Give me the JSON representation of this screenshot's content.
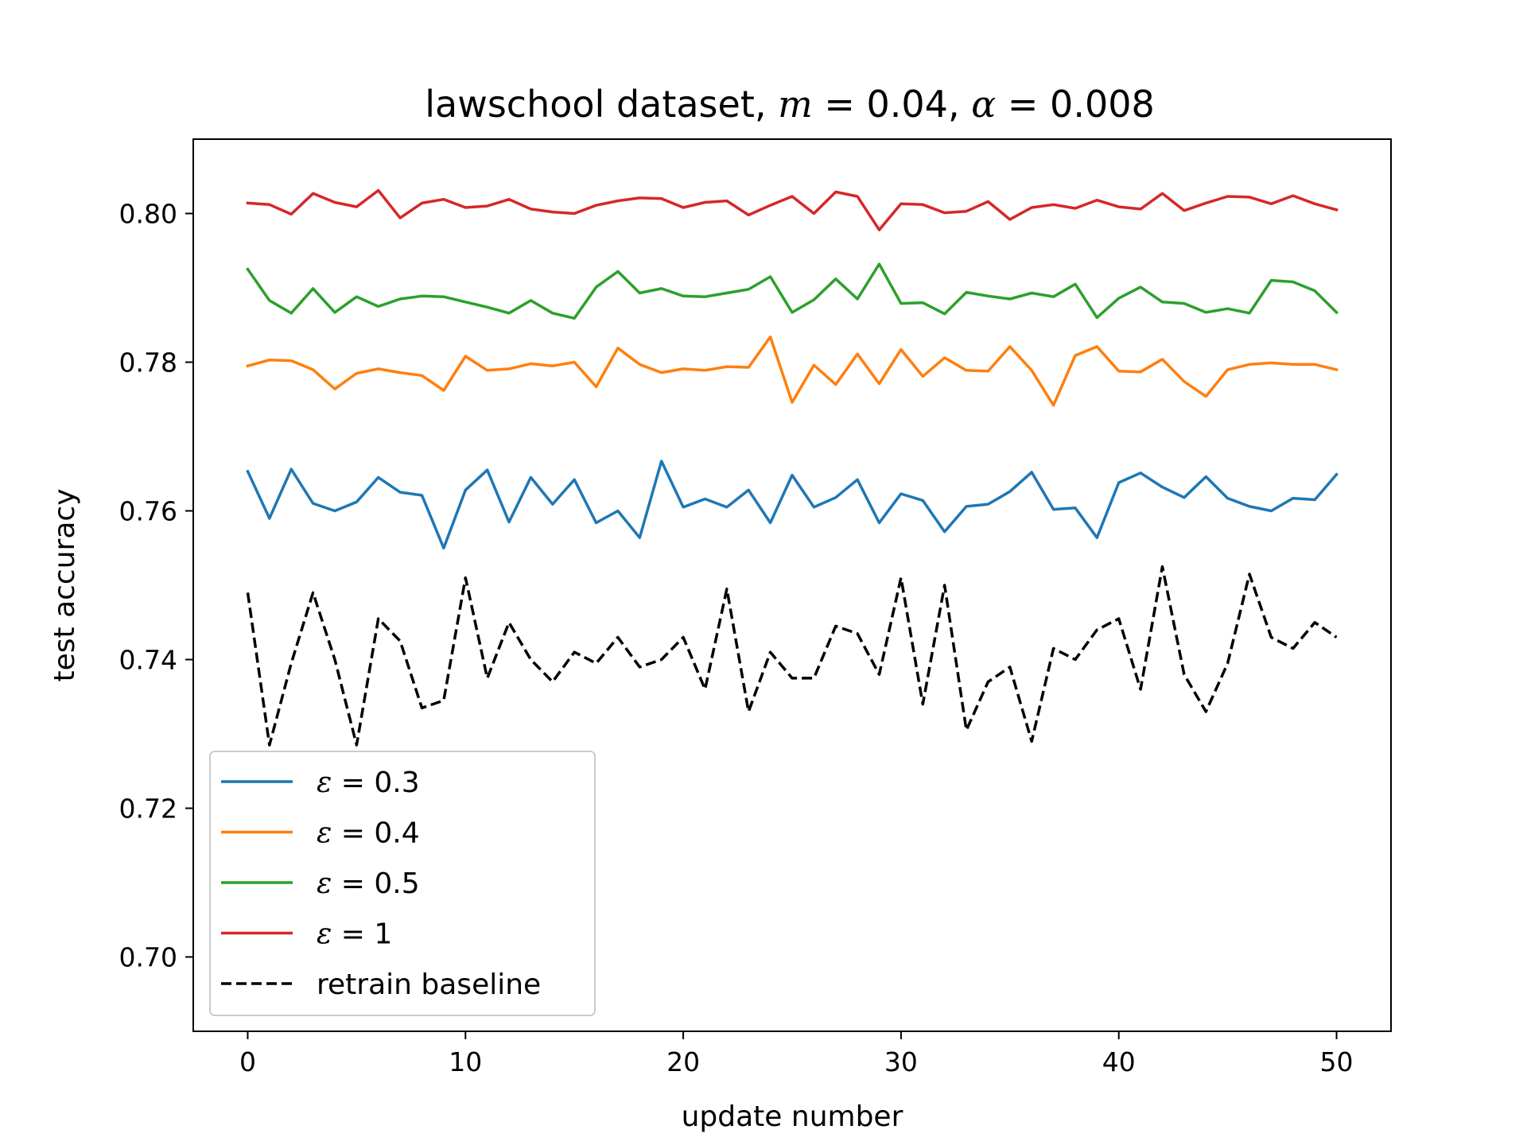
{
  "chart_data": {
    "type": "line",
    "title": {
      "prefix": "lawschool dataset, ",
      "m_symbol": "m",
      "m_rest": " = 0.04, ",
      "alpha_symbol": "α",
      "alpha_rest": " = 0.008"
    },
    "xlabel": "update number",
    "ylabel": "test accuracy",
    "xlim": [
      -2.5,
      52.5
    ],
    "ylim": [
      0.69,
      0.81
    ],
    "xticks": [
      0,
      10,
      20,
      30,
      40,
      50
    ],
    "xtick_labels": [
      "0",
      "10",
      "20",
      "30",
      "40",
      "50"
    ],
    "yticks": [
      0.7,
      0.72,
      0.74,
      0.76,
      0.78,
      0.8
    ],
    "ytick_labels": [
      "0.70",
      "0.72",
      "0.74",
      "0.76",
      "0.78",
      "0.80"
    ],
    "grid": false,
    "legend_position": "lower-left",
    "x": [
      0,
      1,
      2,
      3,
      4,
      5,
      6,
      7,
      8,
      9,
      10,
      11,
      12,
      13,
      14,
      15,
      16,
      17,
      18,
      19,
      20,
      21,
      22,
      23,
      24,
      25,
      26,
      27,
      28,
      29,
      30,
      31,
      32,
      33,
      34,
      35,
      36,
      37,
      38,
      39,
      40,
      41,
      42,
      43,
      44,
      45,
      46,
      47,
      48,
      49,
      50
    ],
    "series": [
      {
        "symbol": "ε",
        "label_rest": " = 0.3",
        "color": "#1f77b4",
        "dash": "solid",
        "values": [
          0.7653,
          0.759,
          0.7656,
          0.761,
          0.76,
          0.7612,
          0.7645,
          0.7625,
          0.7621,
          0.755,
          0.7628,
          0.7655,
          0.7585,
          0.7645,
          0.7609,
          0.7642,
          0.7584,
          0.76,
          0.7564,
          0.7667,
          0.7605,
          0.7616,
          0.7605,
          0.7628,
          0.7584,
          0.7648,
          0.7605,
          0.7618,
          0.7642,
          0.7584,
          0.7623,
          0.7614,
          0.7572,
          0.7606,
          0.7609,
          0.7626,
          0.7652,
          0.7602,
          0.7604,
          0.7564,
          0.7638,
          0.7651,
          0.7632,
          0.7618,
          0.7646,
          0.7617,
          0.7606,
          0.76,
          0.7617,
          0.7615,
          0.7649
        ]
      },
      {
        "symbol": "ε",
        "label_rest": " = 0.4",
        "color": "#ff7f0e",
        "dash": "solid",
        "values": [
          0.7795,
          0.7803,
          0.7802,
          0.779,
          0.7764,
          0.7785,
          0.7791,
          0.7786,
          0.7782,
          0.7762,
          0.7808,
          0.7789,
          0.7791,
          0.7798,
          0.7795,
          0.78,
          0.7767,
          0.7819,
          0.7797,
          0.7786,
          0.7791,
          0.7789,
          0.7794,
          0.7793,
          0.7834,
          0.7746,
          0.7796,
          0.777,
          0.7811,
          0.7771,
          0.7817,
          0.7781,
          0.7806,
          0.7789,
          0.7788,
          0.7821,
          0.7789,
          0.7742,
          0.7809,
          0.7821,
          0.7788,
          0.7787,
          0.7804,
          0.7774,
          0.7754,
          0.779,
          0.7797,
          0.7799,
          0.7797,
          0.7797,
          0.779
        ]
      },
      {
        "symbol": "ε",
        "label_rest": " = 0.5",
        "color": "#2ca02c",
        "dash": "solid",
        "values": [
          0.7925,
          0.7883,
          0.7866,
          0.7899,
          0.7867,
          0.7888,
          0.7875,
          0.7885,
          0.7889,
          0.7888,
          0.7881,
          0.7874,
          0.7866,
          0.7883,
          0.7866,
          0.7859,
          0.7901,
          0.7922,
          0.7893,
          0.7899,
          0.7889,
          0.7888,
          0.7893,
          0.7898,
          0.7915,
          0.7867,
          0.7884,
          0.7912,
          0.7885,
          0.7932,
          0.7879,
          0.788,
          0.7865,
          0.7894,
          0.7889,
          0.7885,
          0.7893,
          0.7888,
          0.7905,
          0.786,
          0.7886,
          0.7901,
          0.7881,
          0.7879,
          0.7867,
          0.7872,
          0.7866,
          0.791,
          0.7908,
          0.7896,
          0.7867
        ]
      },
      {
        "symbol": "ε",
        "label_rest": " = 1",
        "color": "#d62728",
        "dash": "solid",
        "values": [
          0.8014,
          0.8012,
          0.7999,
          0.8027,
          0.8015,
          0.8009,
          0.8031,
          0.7994,
          0.8014,
          0.8019,
          0.8008,
          0.801,
          0.8019,
          0.8006,
          0.8002,
          0.8,
          0.8011,
          0.8017,
          0.8021,
          0.802,
          0.8008,
          0.8015,
          0.8017,
          0.7998,
          0.8011,
          0.8023,
          0.8,
          0.8029,
          0.8023,
          0.7978,
          0.8013,
          0.8012,
          0.8001,
          0.8003,
          0.8016,
          0.7992,
          0.8008,
          0.8012,
          0.8007,
          0.8018,
          0.8009,
          0.8006,
          0.8027,
          0.8004,
          0.8014,
          0.8023,
          0.8022,
          0.8013,
          0.8024,
          0.8013,
          0.8005
        ]
      },
      {
        "symbol": "",
        "label_rest": "retrain baseline",
        "color": "#000000",
        "dash": "dashed",
        "values": [
          0.749,
          0.7285,
          0.7395,
          0.749,
          0.74,
          0.7285,
          0.7455,
          0.7425,
          0.7335,
          0.7345,
          0.751,
          0.7375,
          0.745,
          0.74,
          0.737,
          0.741,
          0.7395,
          0.743,
          0.739,
          0.74,
          0.743,
          0.736,
          0.7495,
          0.733,
          0.741,
          0.7375,
          0.7375,
          0.7445,
          0.7435,
          0.738,
          0.751,
          0.734,
          0.75,
          0.7305,
          0.737,
          0.739,
          0.729,
          0.7415,
          0.74,
          0.744,
          0.7455,
          0.736,
          0.7525,
          0.738,
          0.733,
          0.7395,
          0.7515,
          0.743,
          0.7415,
          0.745,
          0.743
        ]
      }
    ]
  }
}
